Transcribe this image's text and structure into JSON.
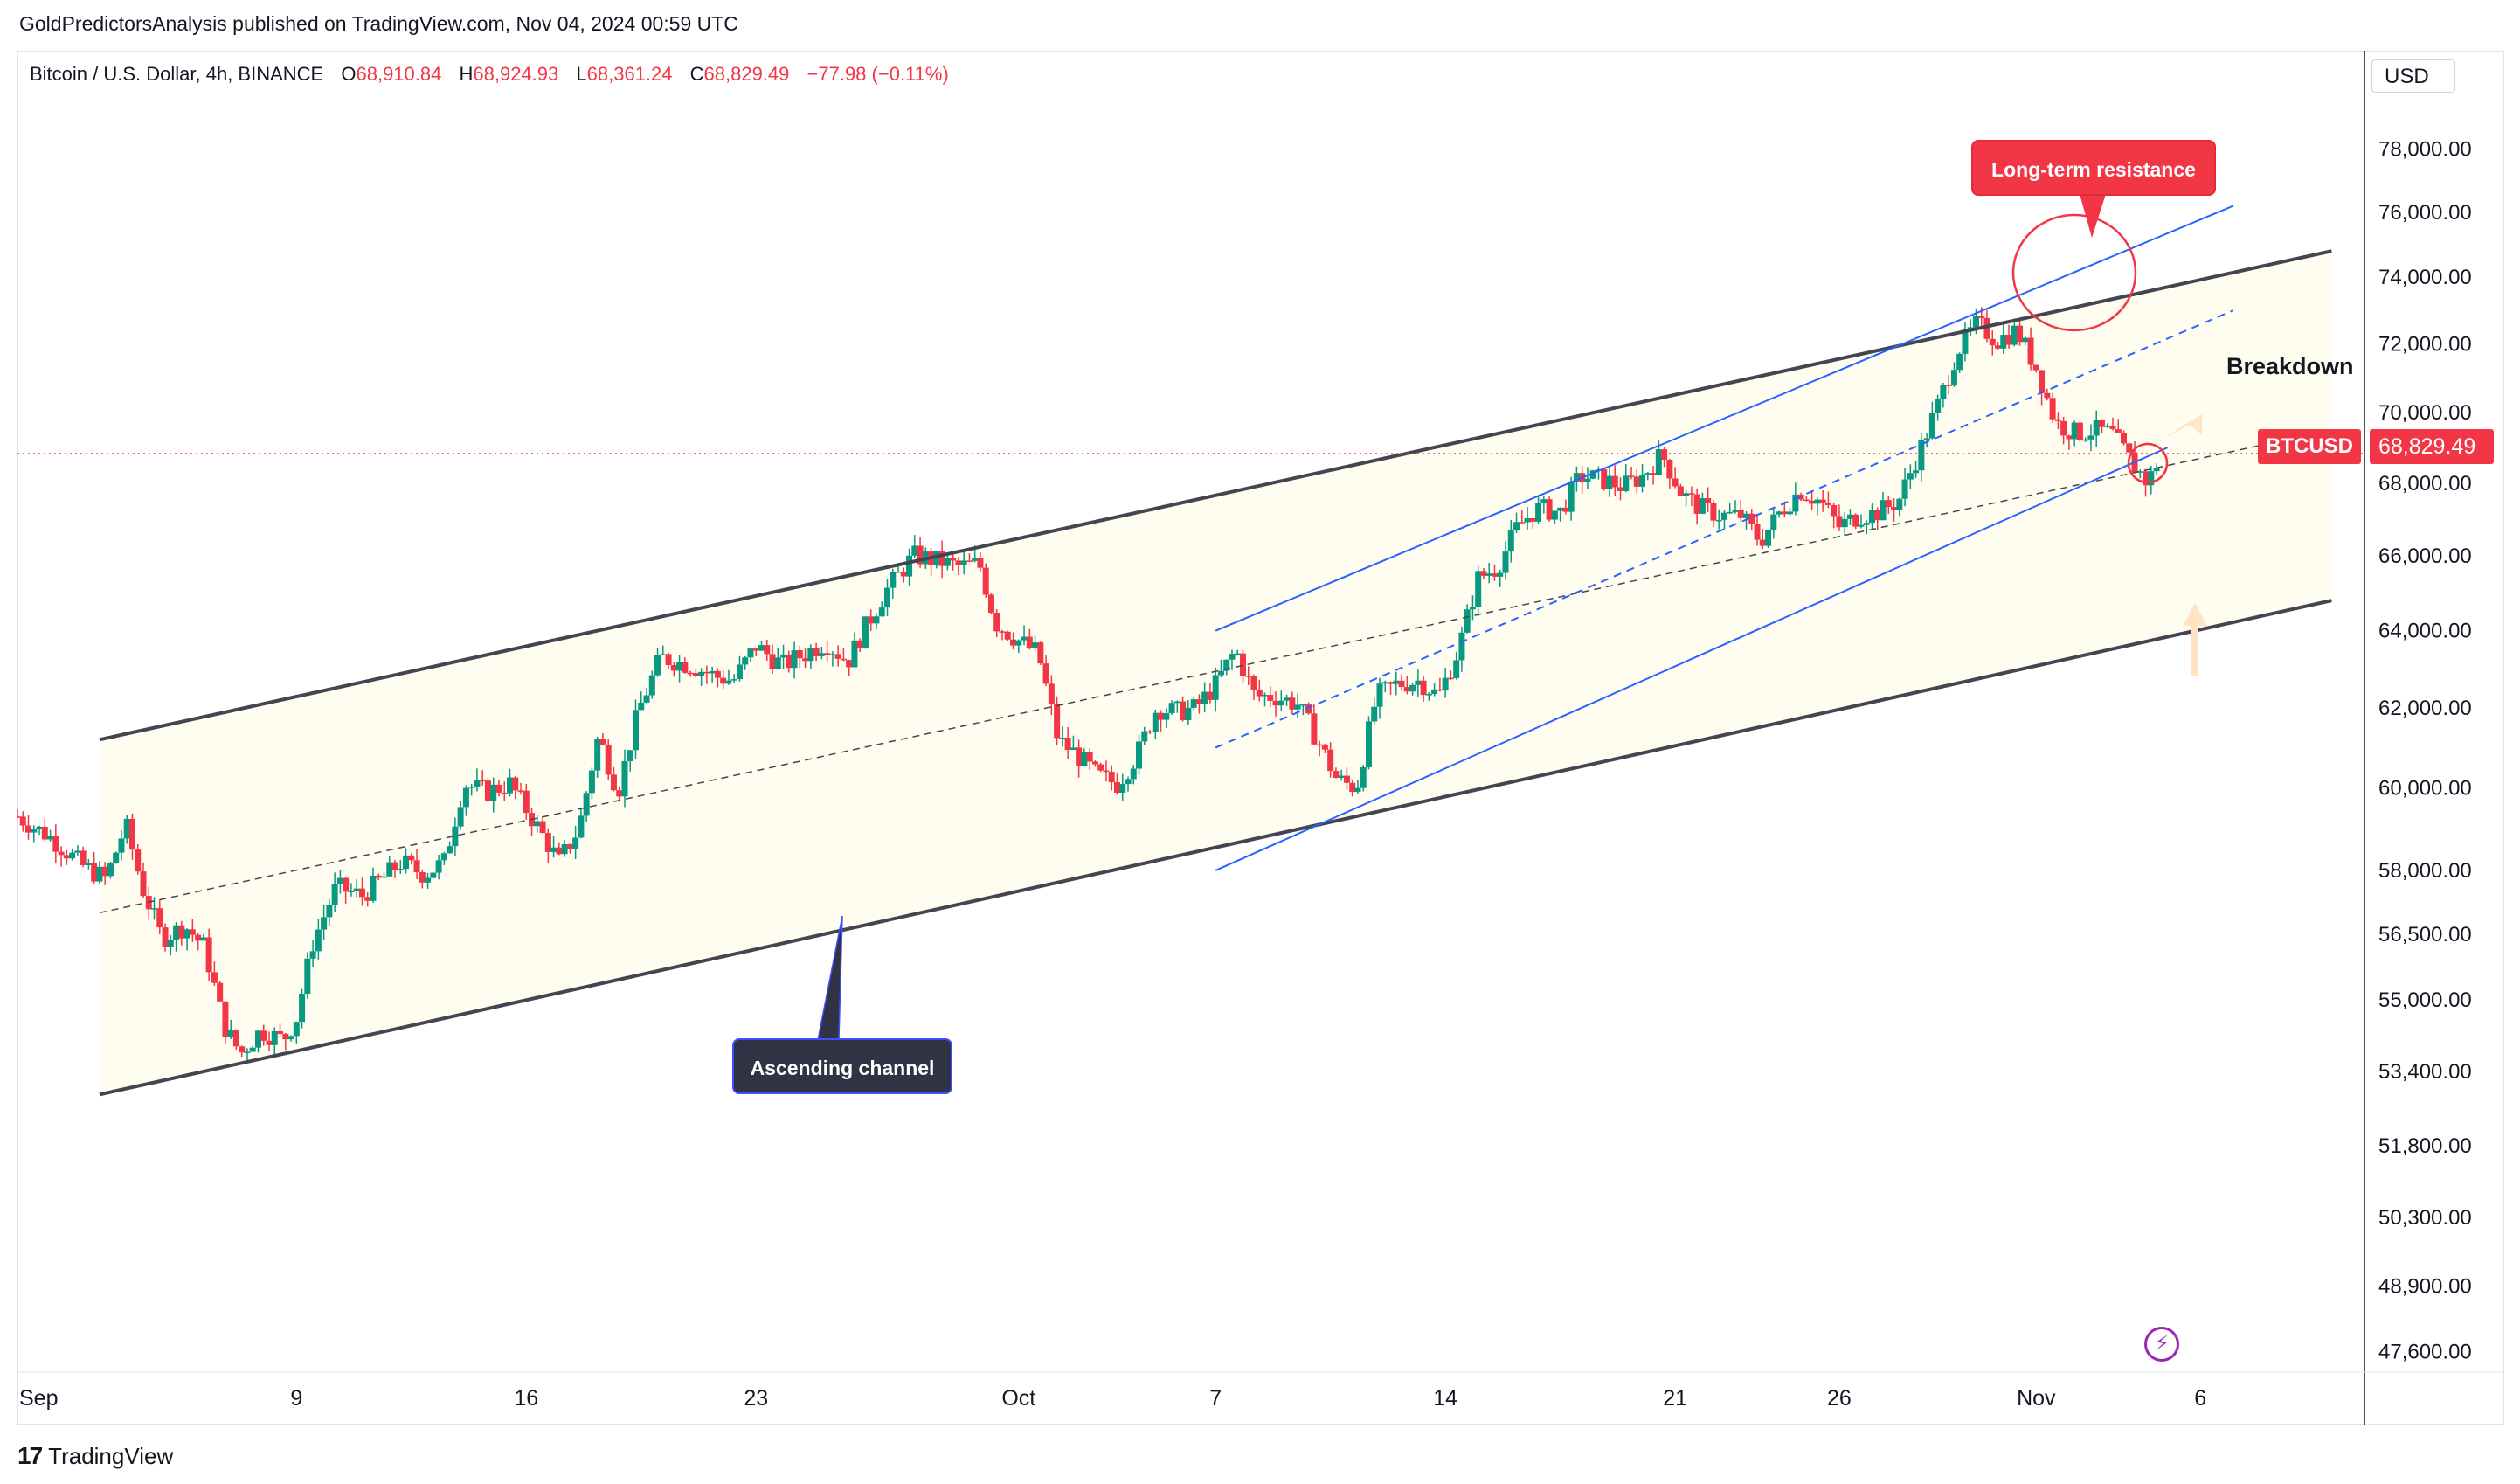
{
  "header": {
    "published_by": "GoldPredictorsAnalysis published on TradingView.com, Nov 04, 2024 00:59 UTC"
  },
  "symbol_bar": {
    "instrument": "Bitcoin / U.S. Dollar, 4h, BINANCE",
    "open_label": "O",
    "open": "68,910.84",
    "high_label": "H",
    "high": "68,924.93",
    "low_label": "L",
    "low": "68,361.24",
    "close_label": "C",
    "close": "68,829.49",
    "change": "−77.98 (−0.11%)"
  },
  "currency_label": "USD",
  "annotations": {
    "long_term_resistance": "Long-term resistance",
    "ascending_channel": "Ascending channel",
    "breakdown": "Breakdown"
  },
  "last_price": {
    "symbol": "BTCUSD",
    "value": "68,829.49",
    "numeric": 68829.49
  },
  "footer": {
    "brand": "TradingView"
  },
  "colors": {
    "up": "#089981",
    "down": "#f23645",
    "channel_outer": "#434651",
    "channel_inner": "#2962ff",
    "callout_red": "#f23645",
    "callout_dark": "#2f3343",
    "channel_fill": "#fffcf0",
    "arrow_fill": "#ffe3c2"
  },
  "chart_data": {
    "type": "candlestick",
    "timeframe": "4h",
    "x_ticks": [
      "Sep",
      "9",
      "16",
      "23",
      "Oct",
      "7",
      "14",
      "21",
      "26",
      "Nov",
      "6"
    ],
    "x_tick_days": [
      1,
      9,
      16,
      23,
      31,
      37,
      44,
      51,
      56,
      62,
      67
    ],
    "y_ticks": [
      78000,
      76000,
      74000,
      72000,
      70000,
      68000,
      66000,
      64000,
      62000,
      60000,
      58000,
      56500,
      55000,
      53400,
      51800,
      50300,
      48900,
      47600
    ],
    "y_tick_labels": [
      "78,000.00",
      "76,000.00",
      "74,000.00",
      "72,000.00",
      "70,000.00",
      "68,000.00",
      "66,000.00",
      "64,000.00",
      "62,000.00",
      "60,000.00",
      "58,000.00",
      "56,500.00",
      "55,000.00",
      "53,400.00",
      "51,800.00",
      "50,300.00",
      "48,900.00",
      "47,600.00"
    ],
    "y_scale": "log",
    "y_range": [
      47200,
      80000
    ],
    "x_range_days": [
      0.5,
      72
    ],
    "path_day_price": [
      [
        0.5,
        59300
      ],
      [
        1.5,
        58800
      ],
      [
        2.5,
        58100
      ],
      [
        3.2,
        57800
      ],
      [
        3.8,
        59100
      ],
      [
        4.3,
        57600
      ],
      [
        4.9,
        56400
      ],
      [
        5.6,
        56700
      ],
      [
        6.2,
        56200
      ],
      [
        6.8,
        54400
      ],
      [
        7.3,
        53800
      ],
      [
        7.9,
        54300
      ],
      [
        8.6,
        54100
      ],
      [
        9.0,
        54600
      ],
      [
        9.5,
        56300
      ],
      [
        10.2,
        57600
      ],
      [
        11.0,
        57400
      ],
      [
        11.6,
        57800
      ],
      [
        12.2,
        58200
      ],
      [
        12.9,
        57900
      ],
      [
        13.5,
        58200
      ],
      [
        14.1,
        60100
      ],
      [
        14.8,
        59900
      ],
      [
        15.5,
        60100
      ],
      [
        16.3,
        59100
      ],
      [
        17.0,
        58200
      ],
      [
        17.6,
        59000
      ],
      [
        18.2,
        61300
      ],
      [
        18.8,
        59900
      ],
      [
        19.4,
        61900
      ],
      [
        20.1,
        63300
      ],
      [
        21.0,
        63100
      ],
      [
        21.8,
        62800
      ],
      [
        22.3,
        62700
      ],
      [
        23.0,
        63600
      ],
      [
        23.8,
        63100
      ],
      [
        24.5,
        63400
      ],
      [
        25.1,
        63700
      ],
      [
        25.8,
        63200
      ],
      [
        26.4,
        64200
      ],
      [
        27.0,
        65100
      ],
      [
        27.8,
        66000
      ],
      [
        28.4,
        65900
      ],
      [
        29.2,
        65700
      ],
      [
        29.8,
        65800
      ],
      [
        30.3,
        64200
      ],
      [
        30.9,
        63800
      ],
      [
        31.6,
        63400
      ],
      [
        32.2,
        61200
      ],
      [
        32.8,
        60800
      ],
      [
        33.4,
        60300
      ],
      [
        34.0,
        60100
      ],
      [
        34.6,
        60800
      ],
      [
        35.2,
        62000
      ],
      [
        35.8,
        61900
      ],
      [
        36.4,
        62000
      ],
      [
        37.0,
        62600
      ],
      [
        37.6,
        63500
      ],
      [
        38.2,
        62300
      ],
      [
        38.8,
        62300
      ],
      [
        39.5,
        62100
      ],
      [
        40.1,
        61200
      ],
      [
        40.7,
        60200
      ],
      [
        41.3,
        60000
      ],
      [
        41.9,
        62300
      ],
      [
        42.5,
        62600
      ],
      [
        43.2,
        62700
      ],
      [
        43.8,
        62300
      ],
      [
        44.4,
        63500
      ],
      [
        45.0,
        65400
      ],
      [
        45.6,
        65700
      ],
      [
        46.2,
        66800
      ],
      [
        46.8,
        67300
      ],
      [
        47.5,
        67200
      ],
      [
        48.1,
        68200
      ],
      [
        48.8,
        68100
      ],
      [
        49.4,
        67900
      ],
      [
        50.0,
        68200
      ],
      [
        50.6,
        68800
      ],
      [
        51.2,
        67700
      ],
      [
        51.8,
        67300
      ],
      [
        52.4,
        67100
      ],
      [
        53.0,
        67100
      ],
      [
        53.6,
        66400
      ],
      [
        54.2,
        67200
      ],
      [
        54.8,
        67800
      ],
      [
        55.4,
        67500
      ],
      [
        56.0,
        66800
      ],
      [
        56.6,
        67100
      ],
      [
        57.2,
        67200
      ],
      [
        57.8,
        67500
      ],
      [
        58.4,
        68800
      ],
      [
        59.0,
        70200
      ],
      [
        59.6,
        71800
      ],
      [
        60.2,
        72600
      ],
      [
        60.8,
        72100
      ],
      [
        61.4,
        72400
      ],
      [
        62.0,
        71300
      ],
      [
        62.6,
        69700
      ],
      [
        63.2,
        69400
      ],
      [
        63.8,
        69500
      ],
      [
        64.3,
        69400
      ],
      [
        64.9,
        68600
      ],
      [
        65.4,
        68000
      ],
      [
        65.8,
        68829.49
      ]
    ],
    "lines": {
      "outer_channel_top": [
        [
          3,
          61200
        ],
        [
          71,
          74800
        ]
      ],
      "outer_channel_bottom": [
        [
          3,
          52900
        ],
        [
          71,
          64800
        ]
      ],
      "outer_channel_mid": [
        [
          3,
          57000
        ],
        [
          71,
          69500
        ]
      ],
      "inner_channel_top": [
        [
          37,
          64000
        ],
        [
          68,
          76200
        ]
      ],
      "inner_channel_bottom": [
        [
          37,
          58000
        ],
        [
          66,
          69000
        ]
      ],
      "inner_channel_mid": [
        [
          37,
          61000
        ],
        [
          68,
          73000
        ]
      ]
    }
  }
}
